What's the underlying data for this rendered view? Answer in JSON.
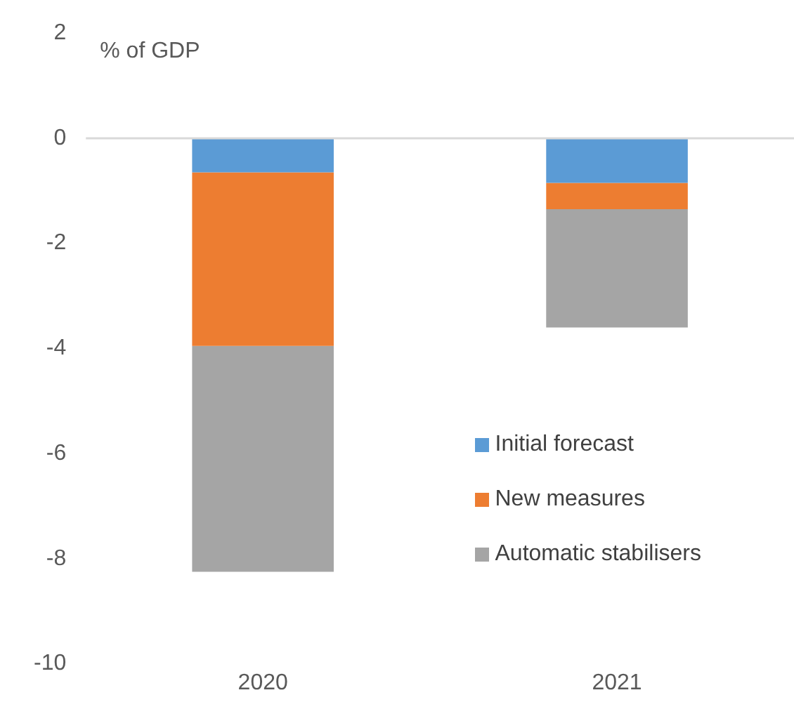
{
  "chart_data": {
    "type": "bar",
    "ylabel": "% of GDP",
    "categories": [
      "2020",
      "2021"
    ],
    "stacked": true,
    "series": [
      {
        "name": "Initial forecast",
        "color": "#5b9bd5",
        "values": [
          -0.65,
          -0.85
        ]
      },
      {
        "name": "New measures",
        "color": "#ed7d31",
        "values": [
          -3.3,
          -0.5
        ]
      },
      {
        "name": "Automatic stabilisers",
        "color": "#a5a5a5",
        "values": [
          -4.3,
          -2.25
        ]
      }
    ],
    "ylim": [
      -10,
      2
    ],
    "yticks": [
      -10,
      -8,
      -6,
      -4,
      -2,
      0,
      2
    ],
    "grid": false,
    "ref_lines": [
      {
        "axis": "y",
        "value": 0,
        "color": "#d9d9d9"
      }
    ],
    "legend": "bottom right"
  }
}
